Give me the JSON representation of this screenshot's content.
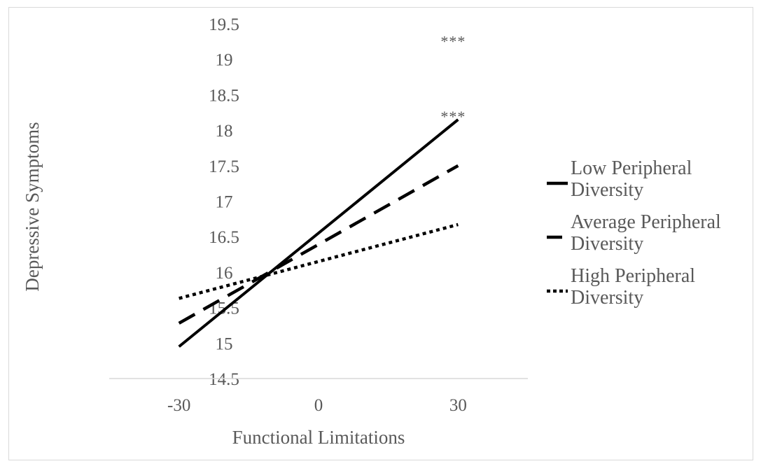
{
  "chart_data": {
    "type": "line",
    "title": "",
    "xlabel": "Functional Limitations",
    "ylabel": "Depressive Symptoms",
    "x_ticks": [
      "-30",
      "0",
      "30"
    ],
    "xlim": [
      -45,
      45
    ],
    "y_ticks": [
      "14.5",
      "15",
      "15.5",
      "16",
      "16.5",
      "17",
      "17.5",
      "18",
      "18.5",
      "19",
      "19.5"
    ],
    "ylim": [
      14.5,
      19.5
    ],
    "grid": false,
    "legend_position": "right",
    "x": [
      -30,
      30
    ],
    "series": [
      {
        "name": "Low Peripheral Diversity",
        "name_lines": [
          "Low Peripheral",
          "Diversity"
        ],
        "values": [
          14.95,
          18.15
        ],
        "line_style": "solid",
        "color": "#000000"
      },
      {
        "name": "Average Peripheral Diversity",
        "name_lines": [
          "Average Peripheral",
          "Diversity"
        ],
        "values": [
          15.28,
          17.5
        ],
        "line_style": "dashed",
        "color": "#000000"
      },
      {
        "name": "High Peripheral Diversity",
        "name_lines": [
          "High Peripheral",
          "Diversity"
        ],
        "values": [
          15.63,
          16.67
        ],
        "line_style": "dotted",
        "color": "#000000"
      }
    ],
    "annotations": [
      {
        "text": "***",
        "x": 30,
        "y": 19.28
      },
      {
        "text": "***",
        "x": 30,
        "y": 18.22
      }
    ],
    "axis_color": "#d9d9d9",
    "text_color": "#595959"
  }
}
